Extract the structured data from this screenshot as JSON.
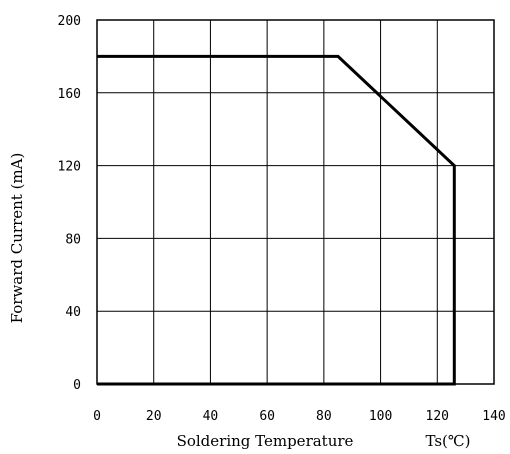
{
  "chart_data": {
    "type": "line",
    "title": "",
    "xlabel": "Soldering Temperature",
    "xlabel_unit": "Ts(℃)",
    "ylabel": "Forward Current (mA)",
    "xlim": [
      0,
      140
    ],
    "ylim": [
      0,
      200
    ],
    "x_ticks": [
      0,
      20,
      40,
      60,
      80,
      100,
      120,
      140
    ],
    "y_ticks": [
      0,
      40,
      80,
      120,
      160,
      200
    ],
    "x_tick_labels": [
      "0",
      "20",
      "40",
      "60",
      "80",
      "100",
      "120",
      "140"
    ],
    "y_tick_labels": [
      "0",
      "40",
      "80",
      "120",
      "160",
      "200"
    ],
    "grid": true,
    "line_color": "#000000",
    "series": [
      {
        "x": [
          0,
          85,
          126,
          126,
          0
        ],
        "y": [
          180,
          180,
          120,
          0,
          0
        ]
      }
    ]
  }
}
